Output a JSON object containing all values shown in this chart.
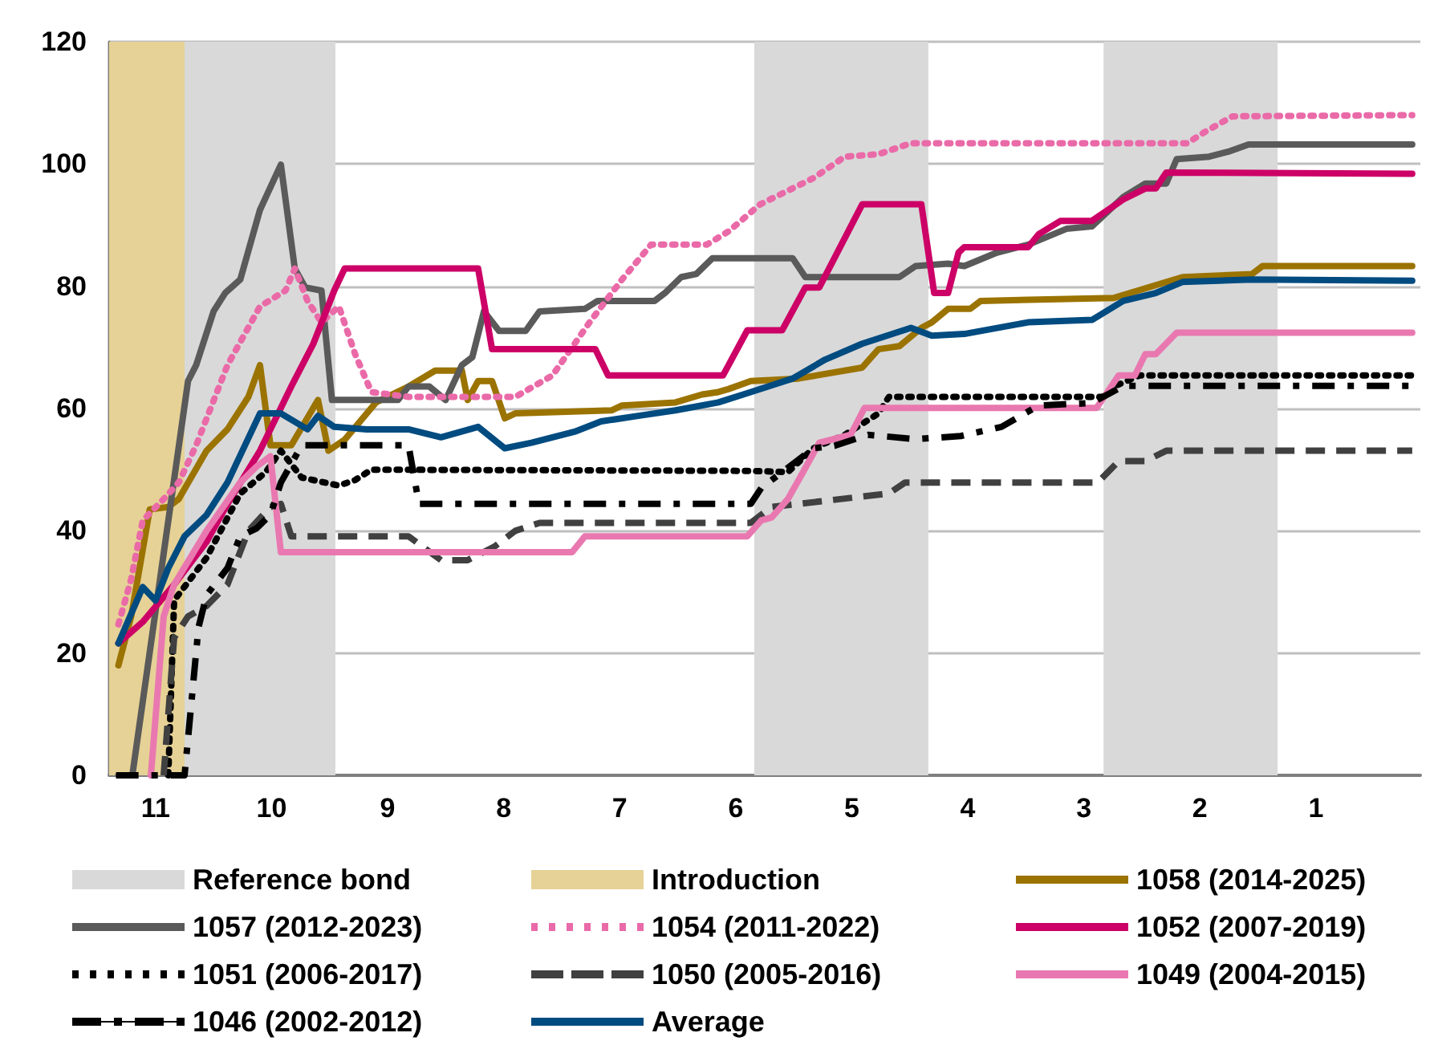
{
  "chart_data": {
    "type": "line",
    "xlim": [
      11.4,
      0.1
    ],
    "xticks": [
      11,
      10,
      9,
      8,
      7,
      6,
      5,
      4,
      3,
      2,
      1
    ],
    "ylim": [
      0,
      120
    ],
    "yticks": [
      0,
      20,
      40,
      60,
      80,
      100,
      120
    ],
    "grid": "y",
    "legend": "bottom",
    "marker": "none",
    "bands": [
      {
        "axis": "x",
        "from": 10.75,
        "to": 9.45,
        "label": "Reference bond",
        "color": "#d9d9d9"
      },
      {
        "axis": "x",
        "from": 5.84,
        "to": 4.34,
        "color": "#d9d9d9"
      },
      {
        "axis": "x",
        "from": 2.83,
        "to": 1.33,
        "color": "#d9d9d9"
      },
      {
        "axis": "x",
        "from": 11.4,
        "to": 10.75,
        "label": "Introduction",
        "color": "#e6d296"
      }
    ],
    "series": [
      {
        "name": "1058 (2014-2025)",
        "color": "#9b7300",
        "line_style": "solid",
        "x": [
          11.32,
          11.21,
          11.05,
          10.89,
          10.8,
          10.56,
          10.38,
          10.2,
          10.1,
          10.01,
          9.83,
          9.6,
          9.51,
          9.37,
          9.1,
          8.82,
          8.59,
          8.36,
          8.31,
          8.22,
          8.1,
          7.99,
          7.9,
          7.07,
          6.98,
          6.52,
          6.29,
          6.15,
          6.06,
          5.87,
          5.46,
          4.91,
          4.77,
          4.59,
          4.4,
          4.31,
          4.17,
          3.98,
          3.89,
          2.74,
          2.15,
          1.55,
          1.46,
          0.17
        ],
        "values": [
          18,
          26,
          43.5,
          43.9,
          45.2,
          53.1,
          56.6,
          61.9,
          67.1,
          54,
          54,
          61.4,
          53.1,
          54.9,
          61,
          63.6,
          66.2,
          66.2,
          61.4,
          64.5,
          64.5,
          58.4,
          59.2,
          59.7,
          60.5,
          61,
          62.3,
          62.7,
          63.2,
          64.5,
          64.9,
          66.7,
          69.7,
          70.2,
          73.2,
          74.1,
          76.3,
          76.3,
          77.6,
          78.1,
          81.5,
          82,
          83.3,
          83.3
        ]
      },
      {
        "name": "1057 (2012-2023)",
        "color": "#5a5a5a",
        "line_style": "solid",
        "x": [
          11.32,
          11.2,
          10.72,
          10.65,
          10.5,
          10.4,
          10.27,
          10.1,
          9.92,
          9.8,
          9.71,
          9.57,
          9.48,
          8.91,
          8.82,
          8.64,
          8.5,
          8.36,
          8.27,
          8.17,
          8.04,
          7.81,
          7.69,
          7.3,
          7.19,
          6.7,
          6.61,
          6.47,
          6.34,
          6.2,
          5.51,
          5.4,
          4.59,
          4.45,
          4.17,
          4.03,
          3.75,
          3.48,
          3.15,
          2.93,
          2.66,
          2.47,
          2.29,
          2.2,
          1.92,
          1.74,
          1.58,
          0.17
        ],
        "values": [
          0,
          0,
          64.5,
          67.1,
          75.9,
          78.9,
          81.1,
          92.5,
          99.9,
          82.9,
          79.8,
          79.3,
          61.4,
          61.4,
          63.6,
          63.6,
          61.4,
          67.1,
          68.4,
          75.9,
          72.7,
          72.7,
          75.9,
          76.3,
          77.6,
          77.6,
          78.9,
          81.5,
          82,
          84.6,
          84.6,
          81.5,
          81.5,
          83.3,
          83.7,
          83.3,
          85.5,
          86.8,
          89.4,
          89.8,
          94.6,
          96.8,
          96.8,
          100.8,
          101.2,
          102.1,
          103.2,
          103.2
        ]
      },
      {
        "name": "1054 (2011-2022)",
        "color": "#ea6aa8",
        "line_style": "dotted",
        "x": [
          11.32,
          11.21,
          11.11,
          10.93,
          10.8,
          10.65,
          10.38,
          10.1,
          9.88,
          9.8,
          9.69,
          9.57,
          9.42,
          9.28,
          9.14,
          8.82,
          8.5,
          8.08,
          7.9,
          7.58,
          7.26,
          6.98,
          6.73,
          6.25,
          6.06,
          5.79,
          5.33,
          5.06,
          4.77,
          4.49,
          2.11,
          1.97,
          1.72,
          0.17
        ],
        "values": [
          24.7,
          32.1,
          41.7,
          45.2,
          47.9,
          54,
          67.1,
          76.7,
          79.3,
          82.9,
          77.6,
          74.1,
          76.7,
          68.9,
          62.7,
          61.9,
          61.9,
          61.9,
          61.9,
          65.4,
          74.1,
          81.1,
          86.8,
          86.8,
          89,
          93.4,
          97.7,
          101.2,
          101.6,
          103.4,
          103.4,
          105.1,
          107.8,
          108
        ]
      },
      {
        "name": "1052 (2007-2019)",
        "color": "#cc0066",
        "line_style": "solid",
        "x": [
          11.32,
          11.11,
          10.84,
          10.56,
          10.38,
          10.1,
          9.83,
          9.64,
          9.46,
          9.37,
          8.22,
          8.1,
          7.21,
          7.1,
          6.11,
          5.9,
          5.6,
          5.4,
          5.28,
          4.91,
          4.4,
          4.29,
          4.17,
          4.08,
          4.03,
          3.48,
          3.39,
          3.2,
          2.93,
          2.66,
          2.47,
          2.38,
          2.29,
          0.17
        ],
        "values": [
          21.6,
          25.1,
          31.2,
          38.2,
          44.4,
          53.1,
          63.6,
          70.6,
          79.3,
          82.9,
          82.9,
          69.7,
          69.7,
          65.4,
          65.4,
          72.8,
          72.8,
          79.8,
          79.8,
          93.4,
          93.4,
          78.9,
          78.9,
          85.5,
          86.4,
          86.4,
          88.5,
          90.7,
          90.7,
          94.2,
          96,
          96,
          98.6,
          98.4
        ]
      },
      {
        "name": "1051 (2006-2017)",
        "color": "#000000",
        "line_style": "dotted",
        "x": [
          10.89,
          10.84,
          10.56,
          10.27,
          10.05,
          9.92,
          9.74,
          9.42,
          9.28,
          9.14,
          5.87,
          5.55,
          5.33,
          5.06,
          4.77,
          4.68,
          2.84,
          2.74,
          2.52,
          0.17
        ],
        "values": [
          0,
          28.6,
          35.6,
          46.1,
          49.6,
          53.1,
          48.7,
          47.4,
          48.3,
          50,
          49.8,
          49.6,
          53.5,
          55.7,
          59.2,
          61.9,
          61.9,
          63.6,
          65.4,
          65.4
        ]
      },
      {
        "name": "1050 (2005-2016)",
        "color": "#404040",
        "line_style": "dashed",
        "x": [
          10.93,
          10.84,
          10.72,
          10.56,
          10.38,
          10.2,
          10.01,
          9.92,
          9.83,
          8.82,
          8.54,
          8.31,
          8.08,
          7.9,
          7.69,
          5.87,
          5.69,
          4.68,
          4.54,
          2.88,
          2.7,
          2.47,
          2.29,
          0.17
        ],
        "values": [
          0,
          22.5,
          26,
          27.7,
          31.2,
          40,
          43.9,
          44.4,
          39.1,
          39.1,
          35.2,
          35.2,
          37.4,
          40,
          41.3,
          41.3,
          43.9,
          46.1,
          47.9,
          47.9,
          51.4,
          51.4,
          53.1,
          53.1
        ]
      },
      {
        "name": "1049 (2004-2015)",
        "color": "#e978b0",
        "line_style": "solid",
        "x": [
          11.04,
          10.93,
          10.84,
          10.56,
          10.27,
          10.13,
          10.01,
          9.92,
          7.41,
          7.3,
          5.9,
          5.78,
          5.69,
          5.55,
          5.42,
          5.28,
          5.01,
          4.89,
          2.89,
          2.7,
          2.56,
          2.47,
          2.38,
          2.2,
          0.17
        ],
        "values": [
          0,
          26,
          31.2,
          40,
          47.9,
          50.5,
          52.2,
          36.5,
          36.5,
          39.1,
          39.1,
          41.7,
          42.2,
          45.2,
          49.6,
          54.4,
          55.7,
          60.1,
          60.1,
          65.4,
          65.4,
          68.9,
          68.9,
          72.4,
          72.4
        ]
      },
      {
        "name": "1046 (2002-2012)",
        "color": "#000000",
        "line_style": "dashdot",
        "x": [
          11.34,
          10.75,
          10.63,
          10.56,
          10.38,
          10.27,
          10.13,
          10.01,
          9.92,
          9.74,
          8.82,
          8.73,
          5.87,
          5.78,
          5.33,
          5.15,
          4.86,
          4.45,
          4.06,
          3.71,
          3.39,
          2.93,
          2.66,
          0.17
        ],
        "values": [
          0,
          0,
          24.2,
          29.5,
          33.9,
          39.1,
          40.4,
          42.6,
          47.9,
          54,
          54,
          44.4,
          44.4,
          47,
          53.5,
          53.9,
          55.7,
          55,
          55.5,
          57,
          60.5,
          60.9,
          63.7,
          63.7
        ]
      },
      {
        "name": "Average",
        "color": "#004b80",
        "line_style": "solid",
        "x": [
          11.32,
          11.11,
          11,
          10.89,
          10.75,
          10.56,
          10.38,
          10.1,
          9.92,
          9.69,
          9.6,
          9.46,
          9.18,
          8.82,
          8.54,
          8.22,
          7.99,
          7.76,
          7.39,
          7.16,
          6.84,
          6.52,
          6.15,
          5.87,
          5.51,
          5.23,
          4.91,
          4.49,
          4.31,
          4.03,
          3.48,
          2.93,
          2.66,
          2.38,
          2.15,
          1.55,
          0.17
        ],
        "values": [
          21.6,
          30.8,
          28.6,
          33.9,
          39.1,
          42.6,
          47.9,
          59.2,
          59.2,
          56.6,
          58.8,
          57,
          56.6,
          56.6,
          55.3,
          57,
          53.5,
          54.4,
          56.2,
          57.9,
          58.8,
          59.7,
          61,
          62.7,
          64.9,
          68,
          70.6,
          73.2,
          71.9,
          72.2,
          74.1,
          74.5,
          77.6,
          78.9,
          80.7,
          81.1,
          80.9
        ]
      }
    ]
  }
}
